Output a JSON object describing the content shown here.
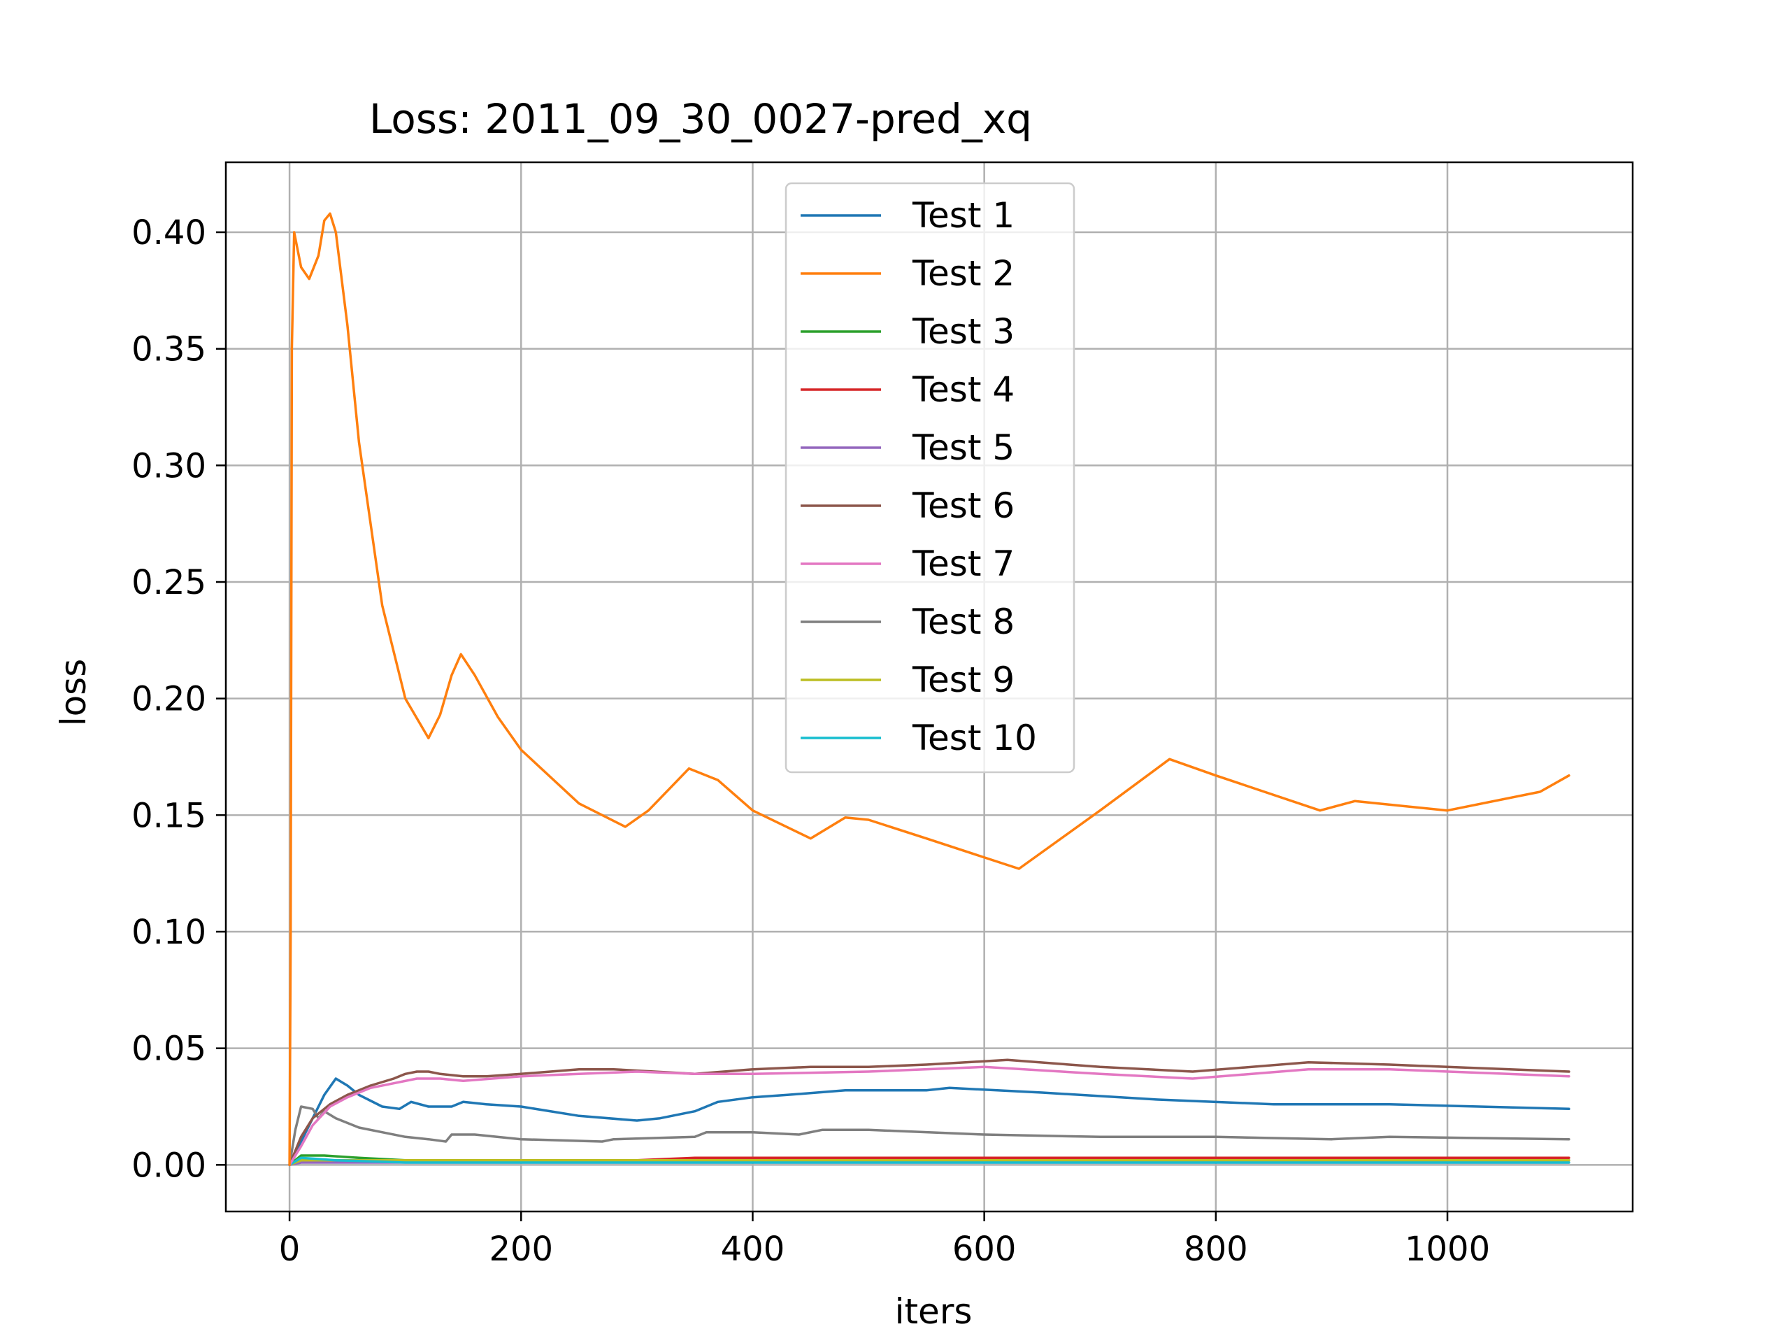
{
  "chart_data": {
    "type": "line",
    "title": "Loss: 2011_09_30_0027-pred_xq",
    "xlabel": "iters",
    "ylabel": "loss",
    "xlim": [
      -55,
      1160
    ],
    "ylim": [
      -0.02,
      0.43
    ],
    "xticks": [
      0,
      200,
      400,
      600,
      800,
      1000
    ],
    "xtick_labels": [
      "0",
      "200",
      "400",
      "600",
      "800",
      "1000"
    ],
    "yticks": [
      0.0,
      0.05,
      0.1,
      0.15,
      0.2,
      0.25,
      0.3,
      0.35,
      0.4
    ],
    "ytick_labels": [
      "0.00",
      "0.05",
      "0.10",
      "0.15",
      "0.20",
      "0.25",
      "0.30",
      "0.35",
      "0.40"
    ],
    "grid": true,
    "legend_position": "upper-center",
    "series": [
      {
        "name": "Test 1",
        "color": "#1f77b4",
        "x": [
          0,
          5,
          10,
          20,
          30,
          40,
          50,
          60,
          80,
          95,
          105,
          120,
          140,
          150,
          170,
          200,
          250,
          300,
          320,
          350,
          370,
          400,
          430,
          480,
          550,
          570,
          650,
          750,
          850,
          950,
          1105
        ],
        "y": [
          0.0,
          0.004,
          0.01,
          0.02,
          0.03,
          0.037,
          0.034,
          0.03,
          0.025,
          0.024,
          0.027,
          0.025,
          0.025,
          0.027,
          0.026,
          0.025,
          0.021,
          0.019,
          0.02,
          0.023,
          0.027,
          0.029,
          0.03,
          0.032,
          0.032,
          0.033,
          0.031,
          0.028,
          0.026,
          0.026,
          0.024
        ]
      },
      {
        "name": "Test 2",
        "color": "#ff7f0e",
        "x": [
          0,
          1,
          2,
          4,
          6,
          10,
          17,
          25,
          30,
          35,
          40,
          50,
          60,
          80,
          100,
          120,
          130,
          140,
          148,
          160,
          180,
          200,
          250,
          290,
          310,
          345,
          370,
          400,
          450,
          480,
          500,
          550,
          630,
          700,
          760,
          800,
          890,
          920,
          1000,
          1080,
          1105
        ],
        "y": [
          0.0,
          0.1,
          0.35,
          0.4,
          0.395,
          0.385,
          0.38,
          0.39,
          0.405,
          0.408,
          0.4,
          0.36,
          0.31,
          0.24,
          0.2,
          0.183,
          0.193,
          0.21,
          0.219,
          0.21,
          0.192,
          0.178,
          0.155,
          0.145,
          0.152,
          0.17,
          0.165,
          0.152,
          0.14,
          0.149,
          0.148,
          0.14,
          0.127,
          0.152,
          0.174,
          0.167,
          0.152,
          0.156,
          0.152,
          0.16,
          0.167
        ]
      },
      {
        "name": "Test 3",
        "color": "#2ca02c",
        "x": [
          0,
          10,
          30,
          60,
          100,
          200,
          400,
          600,
          800,
          1000,
          1105
        ],
        "y": [
          0.0,
          0.004,
          0.004,
          0.003,
          0.002,
          0.002,
          0.002,
          0.002,
          0.002,
          0.002,
          0.002
        ]
      },
      {
        "name": "Test 4",
        "color": "#d62728",
        "x": [
          0,
          10,
          50,
          100,
          200,
          300,
          350,
          400,
          500,
          600,
          700,
          800,
          1000,
          1105
        ],
        "y": [
          0.0,
          0.002,
          0.002,
          0.002,
          0.002,
          0.002,
          0.003,
          0.003,
          0.003,
          0.003,
          0.003,
          0.003,
          0.003,
          0.003
        ]
      },
      {
        "name": "Test 5",
        "color": "#9467bd",
        "x": [
          0,
          10,
          100,
          400,
          800,
          1105
        ],
        "y": [
          0.0,
          0.001,
          0.001,
          0.001,
          0.001,
          0.001
        ]
      },
      {
        "name": "Test 6",
        "color": "#8c564b",
        "x": [
          0,
          10,
          20,
          35,
          50,
          70,
          90,
          100,
          110,
          120,
          130,
          150,
          170,
          200,
          250,
          280,
          350,
          400,
          450,
          500,
          550,
          620,
          700,
          780,
          880,
          950,
          1000,
          1105
        ],
        "y": [
          0.0,
          0.012,
          0.02,
          0.026,
          0.03,
          0.034,
          0.037,
          0.039,
          0.04,
          0.04,
          0.039,
          0.038,
          0.038,
          0.039,
          0.041,
          0.041,
          0.039,
          0.041,
          0.042,
          0.042,
          0.043,
          0.045,
          0.042,
          0.04,
          0.044,
          0.043,
          0.042,
          0.04
        ]
      },
      {
        "name": "Test 7",
        "color": "#e377c2",
        "x": [
          0,
          10,
          20,
          35,
          50,
          70,
          90,
          110,
          130,
          150,
          200,
          250,
          300,
          350,
          400,
          500,
          600,
          700,
          780,
          880,
          950,
          1105
        ],
        "y": [
          0.0,
          0.008,
          0.017,
          0.025,
          0.029,
          0.033,
          0.035,
          0.037,
          0.037,
          0.036,
          0.038,
          0.039,
          0.04,
          0.039,
          0.039,
          0.04,
          0.042,
          0.039,
          0.037,
          0.041,
          0.041,
          0.038
        ]
      },
      {
        "name": "Test 8",
        "color": "#7f7f7f",
        "x": [
          0,
          5,
          10,
          20,
          25,
          30,
          40,
          60,
          80,
          100,
          120,
          135,
          140,
          160,
          200,
          270,
          280,
          350,
          360,
          400,
          440,
          460,
          500,
          600,
          700,
          800,
          900,
          950,
          1105
        ],
        "y": [
          0.0,
          0.015,
          0.025,
          0.024,
          0.02,
          0.023,
          0.02,
          0.016,
          0.014,
          0.012,
          0.011,
          0.01,
          0.013,
          0.013,
          0.011,
          0.01,
          0.011,
          0.012,
          0.014,
          0.014,
          0.013,
          0.015,
          0.015,
          0.013,
          0.012,
          0.012,
          0.011,
          0.012,
          0.011
        ]
      },
      {
        "name": "Test 9",
        "color": "#bcbd22",
        "x": [
          0,
          10,
          50,
          100,
          400,
          800,
          1105
        ],
        "y": [
          0.0,
          0.002,
          0.002,
          0.002,
          0.002,
          0.002,
          0.002
        ]
      },
      {
        "name": "Test 10",
        "color": "#17becf",
        "x": [
          0,
          10,
          40,
          100,
          400,
          800,
          1105
        ],
        "y": [
          0.0,
          0.003,
          0.002,
          0.001,
          0.001,
          0.001,
          0.001
        ]
      }
    ]
  }
}
